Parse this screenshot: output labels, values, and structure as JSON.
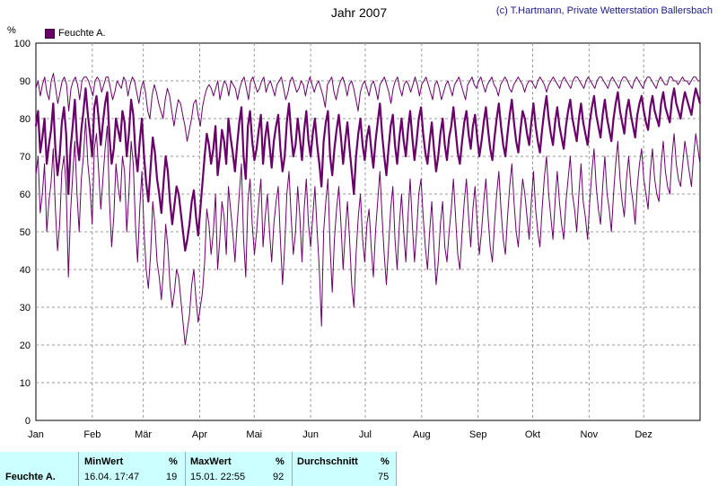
{
  "title": "Jahr 2007",
  "copyright": "(c) T.Hartmann, Private Wetterstation Ballersbach",
  "legend_label": "Feuchte A.",
  "y_unit": "%",
  "colors": {
    "series": "#6a006a",
    "grid": "#999999"
  },
  "chart_data": {
    "type": "line",
    "xlabel": "",
    "ylabel": "%",
    "ylim": [
      0,
      100
    ],
    "y_ticks": [
      0,
      10,
      20,
      30,
      40,
      50,
      60,
      70,
      80,
      90,
      100
    ],
    "x_ticks": [
      "Jan",
      "Feb",
      "Mär",
      "Apr",
      "Mai",
      "Jun",
      "Jul",
      "Aug",
      "Sep",
      "Okt",
      "Nov",
      "Dez"
    ],
    "grid": true,
    "legend_position": "top-left",
    "series": [
      {
        "name": "Feuchte A.",
        "kind": "daily-mean",
        "values": [
          78,
          82,
          71,
          75,
          80,
          68,
          73,
          77,
          84,
          72,
          65,
          70,
          79,
          83,
          76,
          60,
          72,
          78,
          85,
          74,
          69,
          77,
          82,
          88,
          81,
          76,
          70,
          83,
          86,
          80,
          73,
          79,
          84,
          87,
          75,
          68,
          72,
          80,
          77,
          74,
          82,
          79,
          70,
          76,
          85,
          81,
          71,
          66,
          74,
          80,
          70,
          63,
          58,
          67,
          75,
          71,
          64,
          60,
          55,
          63,
          70,
          66,
          58,
          52,
          57,
          62,
          60,
          55,
          50,
          45,
          48,
          52,
          58,
          61,
          54,
          49,
          56,
          63,
          70,
          76,
          73,
          68,
          72,
          78,
          65,
          70,
          77,
          74,
          68,
          80,
          75,
          71,
          66,
          73,
          79,
          83,
          70,
          64,
          78,
          82,
          74,
          69,
          72,
          77,
          81,
          68,
          75,
          79,
          73,
          67,
          74,
          78,
          81,
          72,
          66,
          70,
          79,
          84,
          76,
          70,
          73,
          80,
          75,
          69,
          77,
          82,
          74,
          70,
          76,
          80,
          73,
          68,
          62,
          74,
          79,
          82,
          70,
          65,
          72,
          77,
          81,
          75,
          68,
          74,
          79,
          72,
          66,
          60,
          70,
          76,
          80,
          73,
          69,
          75,
          78,
          72,
          67,
          74,
          79,
          84,
          76,
          70,
          65,
          72,
          78,
          81,
          73,
          68,
          75,
          80,
          74,
          70,
          77,
          82,
          75,
          69,
          74,
          80,
          83,
          76,
          71,
          68,
          74,
          79,
          72,
          66,
          70,
          76,
          80,
          73,
          69,
          75,
          78,
          83,
          77,
          71,
          68,
          74,
          79,
          82,
          76,
          72,
          78,
          81,
          75,
          70,
          74,
          79,
          83,
          77,
          72,
          69,
          75,
          80,
          84,
          78,
          73,
          70,
          76,
          81,
          85,
          79,
          74,
          71,
          77,
          82,
          80,
          76,
          73,
          79,
          84,
          78,
          74,
          71,
          77,
          82,
          86,
          80,
          76,
          73,
          79,
          83,
          78,
          75,
          72,
          78,
          82,
          85,
          80,
          77,
          74,
          80,
          84,
          79,
          76,
          73,
          79,
          83,
          86,
          81,
          78,
          75,
          81,
          85,
          80,
          77,
          74,
          80,
          84,
          87,
          82,
          79,
          76,
          82,
          85,
          81,
          78,
          75,
          81,
          84,
          86,
          82,
          79,
          77,
          83,
          86,
          82,
          80,
          78,
          84,
          87,
          83,
          81,
          79,
          85,
          88,
          84,
          82,
          80,
          84,
          87,
          85,
          83,
          81,
          85,
          88,
          86,
          84
        ]
      },
      {
        "name": "",
        "kind": "daily-max",
        "values": [
          88,
          90,
          86,
          89,
          91,
          87,
          85,
          90,
          92,
          88,
          84,
          87,
          90,
          91,
          89,
          82,
          88,
          90,
          91,
          89,
          85,
          90,
          91,
          91,
          90,
          88,
          86,
          90,
          91,
          90,
          87,
          89,
          91,
          91,
          88,
          85,
          87,
          90,
          89,
          88,
          91,
          90,
          86,
          89,
          91,
          90,
          87,
          84,
          88,
          90,
          87,
          82,
          80,
          86,
          89,
          87,
          84,
          82,
          80,
          85,
          88,
          86,
          82,
          78,
          82,
          85,
          84,
          81,
          78,
          74,
          77,
          80,
          84,
          85,
          81,
          78,
          83,
          86,
          88,
          89,
          88,
          86,
          88,
          90,
          85,
          88,
          90,
          89,
          86,
          90,
          89,
          88,
          85,
          88,
          90,
          91,
          88,
          85,
          90,
          91,
          89,
          87,
          88,
          90,
          91,
          87,
          89,
          90,
          88,
          86,
          89,
          90,
          91,
          88,
          85,
          87,
          90,
          91,
          89,
          87,
          88,
          90,
          89,
          86,
          89,
          91,
          89,
          87,
          89,
          90,
          88,
          86,
          83,
          89,
          90,
          91,
          87,
          85,
          88,
          90,
          91,
          89,
          86,
          89,
          90,
          88,
          85,
          82,
          87,
          89,
          90,
          88,
          86,
          89,
          90,
          88,
          85,
          89,
          90,
          91,
          89,
          87,
          84,
          88,
          90,
          91,
          88,
          86,
          89,
          90,
          89,
          87,
          89,
          91,
          89,
          86,
          89,
          90,
          91,
          89,
          87,
          85,
          89,
          90,
          88,
          85,
          87,
          89,
          90,
          88,
          86,
          89,
          90,
          91,
          89,
          87,
          85,
          89,
          90,
          91,
          89,
          88,
          90,
          91,
          89,
          87,
          89,
          90,
          91,
          89,
          88,
          86,
          89,
          90,
          91,
          90,
          88,
          87,
          89,
          90,
          91,
          90,
          89,
          87,
          89,
          90,
          90,
          89,
          88,
          90,
          91,
          90,
          89,
          87,
          89,
          90,
          91,
          90,
          89,
          88,
          90,
          91,
          90,
          89,
          88,
          90,
          91,
          91,
          90,
          89,
          88,
          90,
          91,
          90,
          89,
          88,
          90,
          91,
          91,
          90,
          89,
          88,
          90,
          91,
          90,
          89,
          88,
          90,
          91,
          91,
          90,
          89,
          88,
          90,
          91,
          90,
          89,
          88,
          90,
          91,
          91,
          90,
          89,
          88,
          90,
          91,
          90,
          89,
          89,
          91,
          91,
          90,
          90,
          89,
          90,
          91,
          90,
          90,
          89,
          90,
          91,
          91,
          90,
          90
        ]
      },
      {
        "name": "",
        "kind": "daily-min",
        "values": [
          65,
          70,
          55,
          60,
          68,
          50,
          58,
          63,
          72,
          56,
          45,
          52,
          66,
          70,
          62,
          38,
          55,
          65,
          74,
          60,
          50,
          64,
          70,
          80,
          68,
          62,
          52,
          72,
          76,
          66,
          56,
          64,
          72,
          78,
          58,
          46,
          54,
          68,
          62,
          58,
          70,
          66,
          50,
          60,
          74,
          68,
          52,
          42,
          56,
          66,
          50,
          40,
          35,
          44,
          58,
          52,
          42,
          38,
          32,
          40,
          52,
          46,
          36,
          30,
          34,
          40,
          38,
          32,
          26,
          20,
          24,
          28,
          36,
          40,
          32,
          26,
          30,
          34,
          42,
          56,
          52,
          44,
          50,
          60,
          40,
          48,
          58,
          54,
          44,
          62,
          56,
          50,
          42,
          52,
          60,
          68,
          48,
          38,
          58,
          64,
          52,
          44,
          50,
          58,
          64,
          46,
          54,
          60,
          50,
          42,
          52,
          58,
          62,
          48,
          36,
          46,
          60,
          66,
          54,
          44,
          50,
          62,
          54,
          42,
          56,
          64,
          52,
          46,
          54,
          62,
          50,
          40,
          25,
          50,
          58,
          64,
          46,
          34,
          48,
          56,
          62,
          52,
          40,
          50,
          58,
          48,
          36,
          30,
          44,
          54,
          60,
          48,
          42,
          52,
          56,
          46,
          38,
          50,
          58,
          66,
          54,
          44,
          36,
          46,
          56,
          62,
          48,
          40,
          52,
          60,
          50,
          42,
          54,
          64,
          52,
          42,
          50,
          60,
          64,
          54,
          46,
          40,
          50,
          58,
          46,
          36,
          42,
          52,
          58,
          46,
          42,
          50,
          56,
          64,
          54,
          44,
          40,
          50,
          58,
          64,
          54,
          46,
          56,
          62,
          52,
          44,
          50,
          58,
          64,
          54,
          46,
          42,
          52,
          60,
          66,
          56,
          48,
          44,
          54,
          62,
          68,
          58,
          50,
          46,
          56,
          64,
          60,
          54,
          48,
          58,
          66,
          56,
          50,
          46,
          56,
          64,
          70,
          60,
          54,
          48,
          58,
          66,
          58,
          52,
          48,
          58,
          64,
          70,
          60,
          56,
          50,
          60,
          68,
          58,
          54,
          48,
          58,
          66,
          72,
          62,
          56,
          52,
          62,
          70,
          60,
          56,
          50,
          60,
          68,
          74,
          64,
          58,
          54,
          64,
          70,
          62,
          58,
          52,
          62,
          68,
          72,
          64,
          60,
          56,
          66,
          72,
          64,
          60,
          58,
          68,
          74,
          66,
          62,
          60,
          70,
          76,
          68,
          64,
          62,
          68,
          74,
          70,
          66,
          62,
          70,
          76,
          72,
          68
        ]
      }
    ]
  },
  "stats": {
    "row_label": "Feuchte A.",
    "min_header": "MinWert",
    "min_unit": "%",
    "min_time": "16.04.  17:47",
    "min_value": "19",
    "max_header": "MaxWert",
    "max_unit": "%",
    "max_time": "15.01.  22:55",
    "max_value": "92",
    "avg_header": "Durchschnitt",
    "avg_unit": "%",
    "avg_value": "75"
  }
}
